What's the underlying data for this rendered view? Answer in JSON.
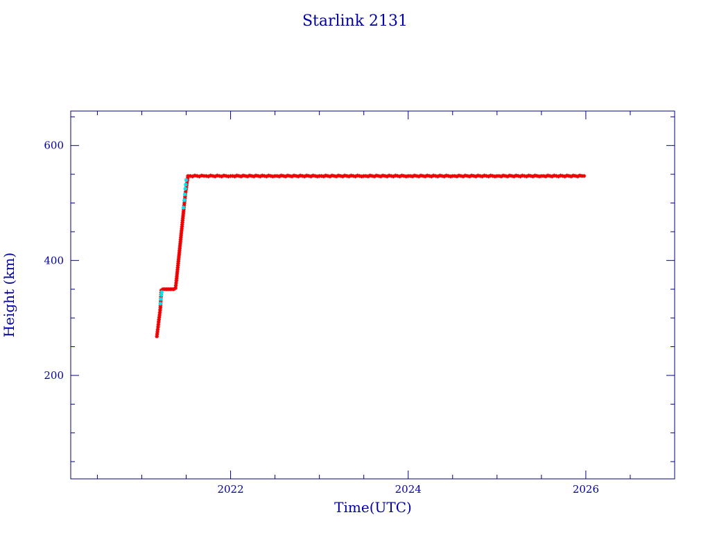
{
  "chart_data": {
    "type": "scatter",
    "title": "Starlink 2131",
    "xlabel": "Time(UTC)",
    "ylabel": "Height (km)",
    "xlim": [
      2020.2,
      2027.0
    ],
    "ylim": [
      20,
      660
    ],
    "x_ticks": [
      2022,
      2024,
      2026
    ],
    "y_ticks": [
      200,
      400,
      600
    ],
    "x_minor_step": 0.5,
    "y_minor_step": 50,
    "grid": false,
    "colors": {
      "axes": "#000080",
      "text": "#0000a0",
      "primary": "#ee0000",
      "secondary": "#00e5ee"
    },
    "series": [
      {
        "color": "#ee0000",
        "points": [
          [
            2021.17,
            268
          ],
          [
            2021.18,
            280
          ],
          [
            2021.19,
            293
          ],
          [
            2021.2,
            305
          ],
          [
            2021.21,
            318
          ],
          [
            2021.22,
            348
          ],
          [
            2021.24,
            350
          ],
          [
            2021.26,
            350
          ],
          [
            2021.28,
            350
          ],
          [
            2021.3,
            350
          ],
          [
            2021.32,
            350
          ],
          [
            2021.34,
            350
          ],
          [
            2021.36,
            350
          ],
          [
            2021.38,
            352
          ],
          [
            2021.39,
            365
          ],
          [
            2021.4,
            380
          ],
          [
            2021.41,
            395
          ],
          [
            2021.42,
            410
          ],
          [
            2021.43,
            425
          ],
          [
            2021.44,
            440
          ],
          [
            2021.45,
            455
          ],
          [
            2021.46,
            470
          ],
          [
            2021.47,
            485
          ],
          [
            2021.48,
            500
          ],
          [
            2021.49,
            515
          ],
          [
            2021.52,
            547
          ],
          [
            2021.7,
            547
          ],
          [
            2022.0,
            547
          ],
          [
            2022.5,
            547
          ],
          [
            2023.0,
            547
          ],
          [
            2023.5,
            547
          ],
          [
            2024.0,
            547
          ],
          [
            2024.5,
            547
          ],
          [
            2025.0,
            547
          ],
          [
            2025.5,
            547
          ],
          [
            2025.98,
            547
          ]
        ]
      },
      {
        "color": "#00e5ee",
        "points": [
          [
            2021.21,
            325
          ],
          [
            2021.215,
            333
          ],
          [
            2021.22,
            340
          ],
          [
            2021.225,
            345
          ],
          [
            2021.47,
            492
          ],
          [
            2021.48,
            505
          ],
          [
            2021.485,
            515
          ],
          [
            2021.49,
            525
          ],
          [
            2021.495,
            532
          ],
          [
            2021.5,
            540
          ]
        ]
      }
    ]
  }
}
